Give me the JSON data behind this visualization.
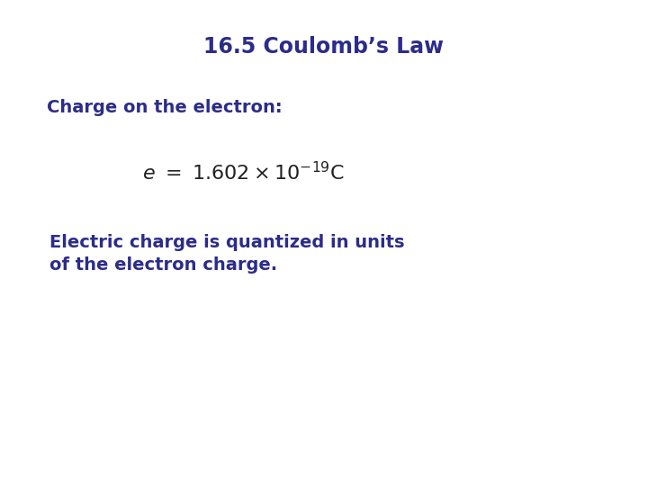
{
  "title": "16.5 Coulomb’s Law",
  "title_color": "#2c2c8a",
  "title_fontsize": 17,
  "title_bold": true,
  "subtitle": "Charge on the electron:",
  "subtitle_color": "#2c2c8a",
  "subtitle_fontsize": 14,
  "subtitle_bold": true,
  "formula": "$e \\ = \\ 1.602 \\times 10^{-19} \\mathrm{C}$",
  "formula_color": "#222222",
  "formula_fontsize": 16,
  "body_line1": "Electric charge is quantized in units",
  "body_line2": "of the electron charge.",
  "body_color": "#2c2c8a",
  "body_fontsize": 14,
  "body_bold": true,
  "background_color": "#ffffff"
}
